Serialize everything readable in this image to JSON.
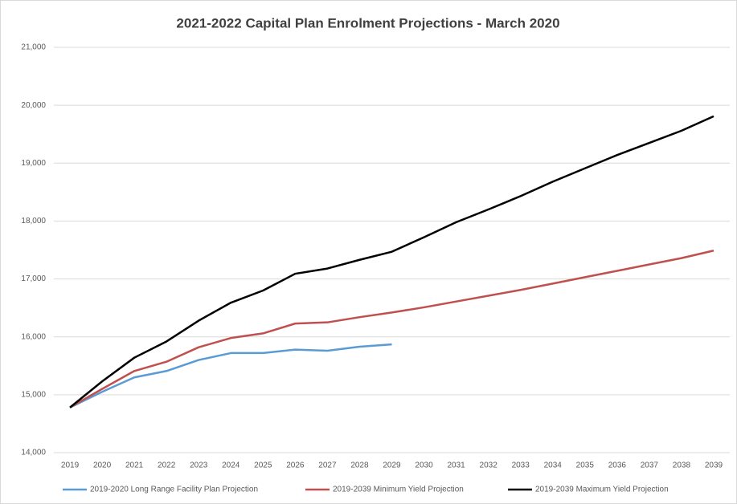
{
  "chart_data": {
    "type": "line",
    "title": "2021-2022 Capital Plan Enrolment Projections - March 2020",
    "categories": [
      "2019",
      "2020",
      "2021",
      "2022",
      "2023",
      "2024",
      "2025",
      "2026",
      "2027",
      "2028",
      "2029",
      "2030",
      "2031",
      "2032",
      "2033",
      "2034",
      "2035",
      "2036",
      "2037",
      "2038",
      "2039"
    ],
    "series": [
      {
        "name": "2019-2020 Long Range Facility Plan Projection",
        "color": "#5b9bd5",
        "values": [
          14780,
          15050,
          15300,
          15410,
          15600,
          15720,
          15720,
          15780,
          15760,
          15830,
          15870,
          null,
          null,
          null,
          null,
          null,
          null,
          null,
          null,
          null,
          null
        ]
      },
      {
        "name": "2019-2039 Minimum Yield Projection",
        "color": "#c0504d",
        "values": [
          14780,
          15100,
          15410,
          15570,
          15820,
          15980,
          16060,
          16230,
          16250,
          16340,
          16420,
          16510,
          16610,
          16710,
          16810,
          16920,
          17030,
          17140,
          17250,
          17360,
          17490
        ]
      },
      {
        "name": "2019-2039 Maximum Yield Projection",
        "color": "#000000",
        "values": [
          14780,
          15230,
          15640,
          15920,
          16280,
          16590,
          16800,
          17090,
          17180,
          17330,
          17470,
          17720,
          17980,
          18200,
          18430,
          18680,
          18910,
          19140,
          19350,
          19560,
          19810
        ]
      }
    ],
    "ylim": [
      14000,
      21000
    ],
    "yticks": [
      {
        "value": 14000,
        "label": "14,000"
      },
      {
        "value": 15000,
        "label": "15,000"
      },
      {
        "value": 16000,
        "label": "16,000"
      },
      {
        "value": 17000,
        "label": "17,000"
      },
      {
        "value": 18000,
        "label": "18,000"
      },
      {
        "value": 19000,
        "label": "19,000"
      },
      {
        "value": 20000,
        "label": "20,000"
      },
      {
        "value": 21000,
        "label": "21,000"
      }
    ],
    "grid": true,
    "legend": "bottom"
  }
}
